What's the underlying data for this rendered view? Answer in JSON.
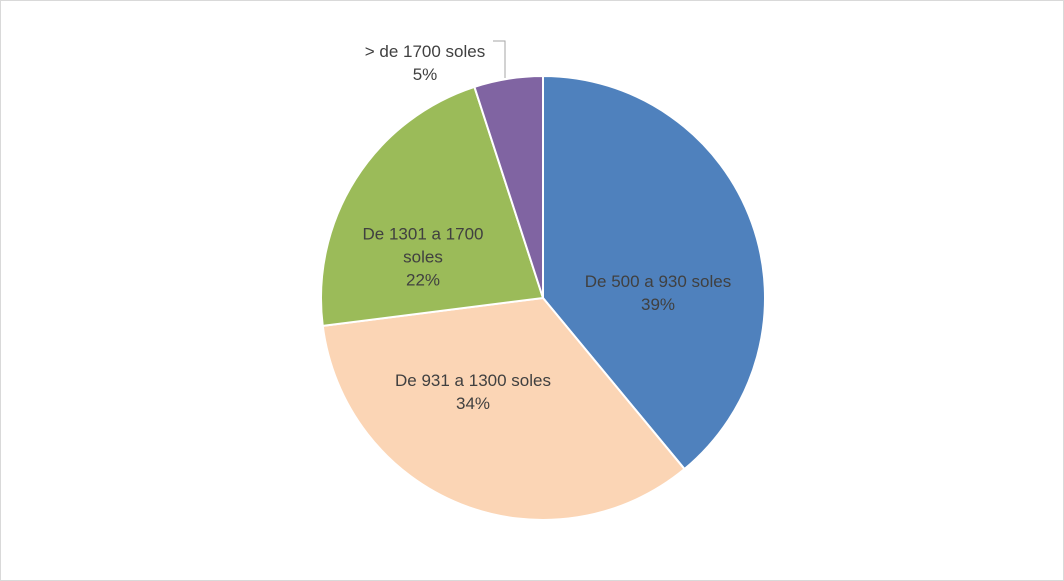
{
  "chart_data": {
    "type": "pie",
    "categories": [
      "De 500 a 930 soles",
      "De 931 a 1300 soles",
      "De 1301 a 1700 soles",
      "> de 1700 soles"
    ],
    "values": [
      39,
      34,
      22,
      5
    ],
    "value_labels": [
      "39%",
      "34%",
      "22%",
      "5%"
    ],
    "colors": [
      "#4f81bd",
      "#fbd5b5",
      "#9bbb59",
      "#8064a2"
    ]
  }
}
